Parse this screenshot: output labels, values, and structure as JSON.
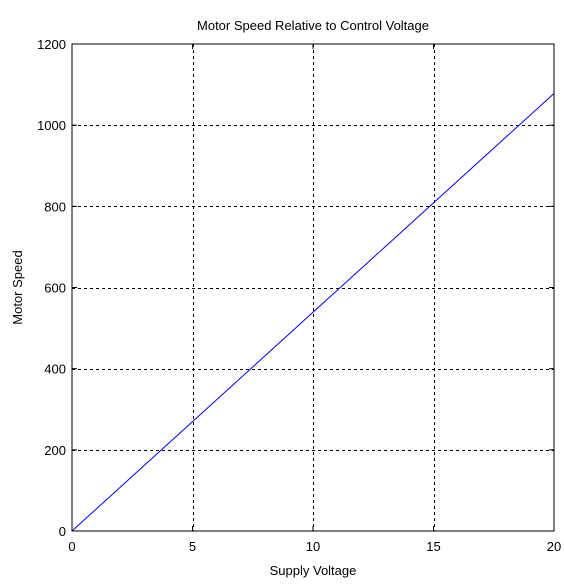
{
  "chart_data": {
    "type": "line",
    "title": "Motor Speed Relative to Control Voltage",
    "xlabel": "Supply Voltage",
    "ylabel": "Motor Speed",
    "xlim": [
      0,
      20
    ],
    "ylim": [
      0,
      1200
    ],
    "xticks": [
      0,
      5,
      10,
      15,
      20
    ],
    "yticks": [
      0,
      200,
      400,
      600,
      800,
      1000,
      1200
    ],
    "xtick_labels": [
      "0",
      "5",
      "10",
      "15",
      "20"
    ],
    "ytick_labels": [
      "0",
      "200",
      "400",
      "600",
      "800",
      "1000",
      "1200"
    ],
    "grid": true,
    "series": [
      {
        "color": "#0000ff",
        "x": [
          0,
          20
        ],
        "y": [
          0,
          1078
        ]
      }
    ]
  }
}
